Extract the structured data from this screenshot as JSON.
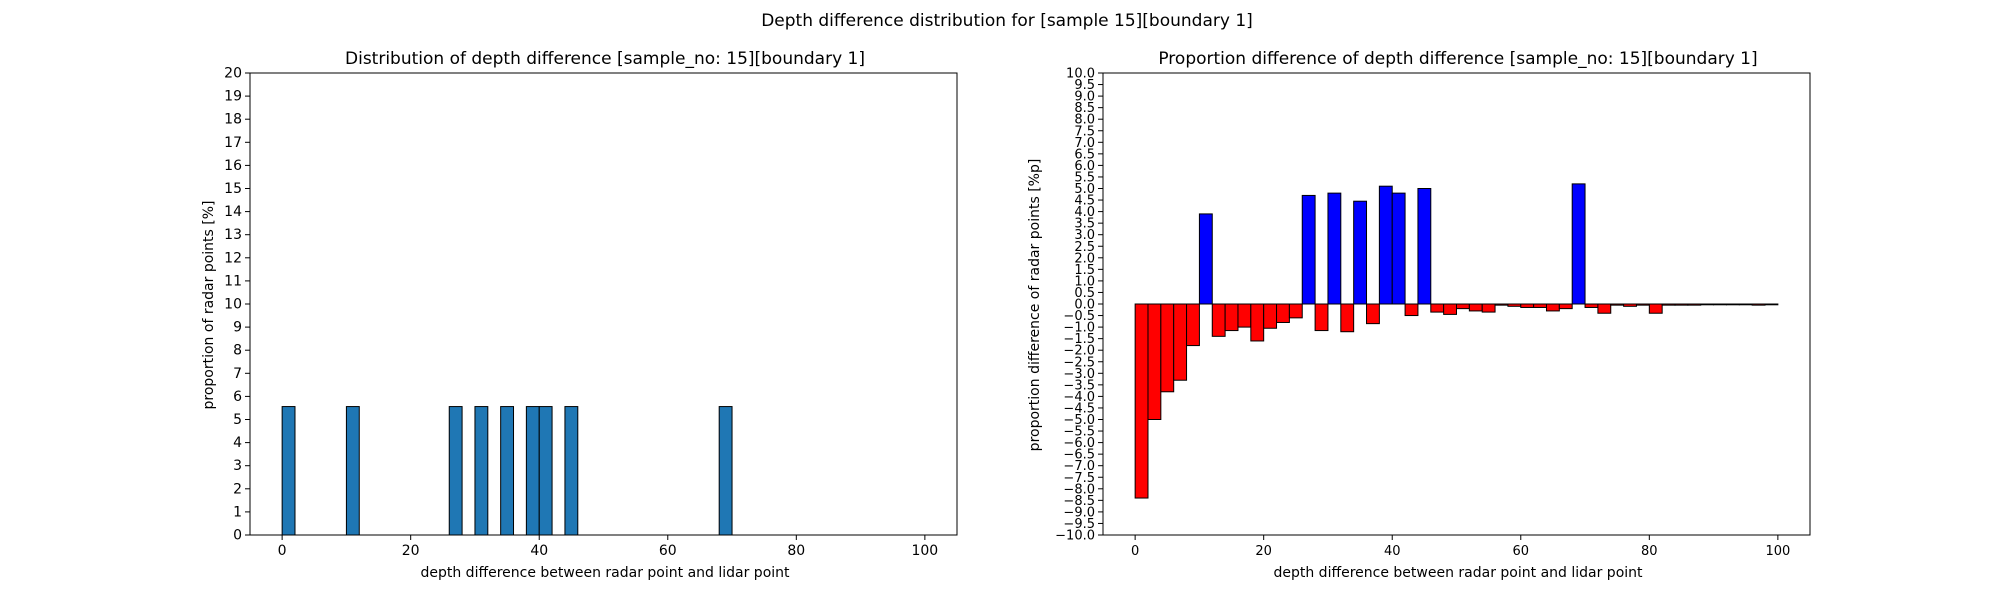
{
  "figure": {
    "suptitle": "Depth difference distribution for [sample 15][boundary 1]"
  },
  "colors": {
    "hist_bar": "#1f77b4",
    "positive_bar": "#0000ff",
    "negative_bar": "#ff0000",
    "edge": "#000000"
  },
  "chart_data": [
    {
      "type": "bar",
      "title": "Distribution of depth difference [sample_no: 15][boundary 1]",
      "xlabel": "depth difference between radar point and lidar point",
      "ylabel": "proportion of radar points [%]",
      "xlim": [
        -5,
        105
      ],
      "ylim": [
        0,
        20
      ],
      "xticks": [
        0,
        20,
        40,
        60,
        80,
        100
      ],
      "yticks": [
        0,
        1,
        2,
        3,
        4,
        5,
        6,
        7,
        8,
        9,
        10,
        11,
        12,
        13,
        14,
        15,
        16,
        17,
        18,
        19,
        20
      ],
      "bin_width": 2,
      "grid": false,
      "x": [
        1,
        11,
        27,
        31,
        35,
        39,
        41,
        45,
        69
      ],
      "values": [
        5.56,
        5.56,
        5.56,
        5.56,
        5.56,
        5.56,
        5.56,
        5.56,
        5.56
      ]
    },
    {
      "type": "bar",
      "title": "Proportion difference of depth difference [sample_no: 15][boundary 1]",
      "xlabel": "depth difference between radar point and lidar point",
      "ylabel": "proportion difference of radar points [%p]",
      "xlim": [
        -5,
        105
      ],
      "ylim": [
        -10,
        10
      ],
      "xticks": [
        0,
        20,
        40,
        60,
        80,
        100
      ],
      "yticks": [
        -10.0,
        -9.5,
        -9.0,
        -8.5,
        -8.0,
        -7.5,
        -7.0,
        -6.5,
        -6.0,
        -5.5,
        -5.0,
        -4.5,
        -4.0,
        -3.5,
        -3.0,
        -2.5,
        -2.0,
        -1.5,
        -1.0,
        -0.5,
        0.0,
        0.5,
        1.0,
        1.5,
        2.0,
        2.5,
        3.0,
        3.5,
        4.0,
        4.5,
        5.0,
        5.5,
        6.0,
        6.5,
        7.0,
        7.5,
        8.0,
        8.5,
        9.0,
        9.5,
        10.0
      ],
      "bin_width": 2,
      "grid": false,
      "x": [
        1,
        3,
        5,
        7,
        9,
        11,
        13,
        15,
        17,
        19,
        21,
        23,
        25,
        27,
        29,
        31,
        33,
        35,
        37,
        39,
        41,
        43,
        45,
        47,
        49,
        51,
        53,
        55,
        57,
        59,
        61,
        63,
        65,
        67,
        69,
        71,
        73,
        75,
        77,
        79,
        81,
        83,
        85,
        87,
        89,
        91,
        93,
        95,
        97,
        99
      ],
      "values": [
        -8.4,
        -5.0,
        -3.8,
        -3.3,
        -1.8,
        3.9,
        -1.4,
        -1.15,
        -1.0,
        -1.6,
        -1.05,
        -0.8,
        -0.6,
        4.7,
        -1.15,
        4.8,
        -1.2,
        4.45,
        -0.85,
        5.1,
        4.8,
        -0.5,
        5.0,
        -0.35,
        -0.45,
        -0.2,
        -0.3,
        -0.35,
        -0.05,
        -0.1,
        -0.15,
        -0.15,
        -0.3,
        -0.2,
        5.2,
        -0.15,
        -0.4,
        -0.05,
        -0.1,
        -0.05,
        -0.4,
        -0.05,
        -0.05,
        -0.05,
        -0.02,
        -0.02,
        -0.02,
        -0.02,
        -0.05,
        -0.02
      ]
    }
  ]
}
